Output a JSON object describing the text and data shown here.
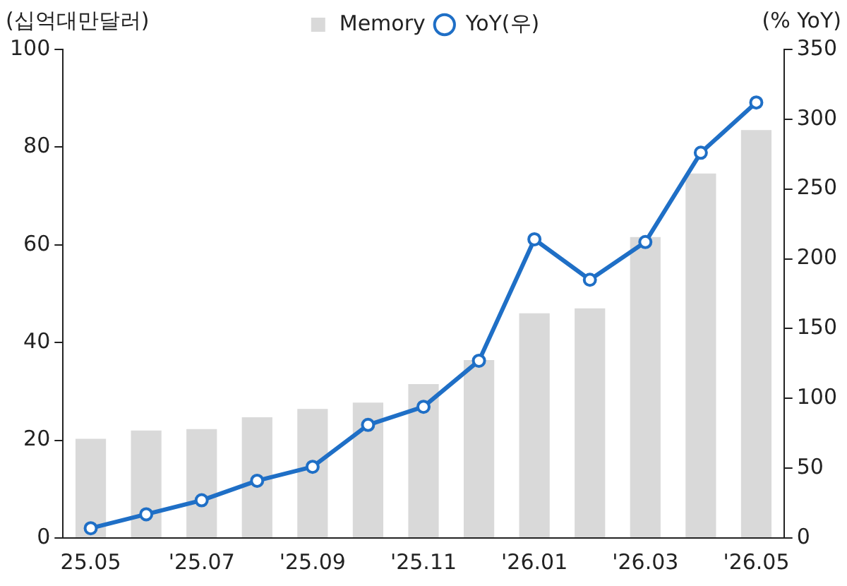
{
  "chart_data": {
    "type": "bar",
    "ylabel": "(십억대만달러)",
    "y2label": "(% YoY)",
    "categories": [
      "25.05",
      null,
      "'25.07",
      null,
      "'25.09",
      null,
      "'25.11",
      null,
      "'26.01",
      null,
      "'26.03",
      null,
      "'26.05"
    ],
    "series": [
      {
        "name": "Memory",
        "color": "#d9d9d9",
        "values": [
          20.3,
          22.0,
          22.3,
          24.7,
          26.4,
          27.7,
          31.5,
          36.4,
          46.0,
          47.0,
          61.6,
          74.6,
          83.5
        ]
      },
      {
        "name": "YoY(우)",
        "type": "line",
        "axis": "y2",
        "color": "#1f6fc6",
        "values": [
          7,
          17,
          27,
          41,
          51,
          81,
          94,
          127,
          214,
          185,
          212,
          276,
          312
        ]
      }
    ],
    "ylim": [
      0,
      100
    ],
    "yticks": [
      0,
      20,
      40,
      60,
      80,
      100
    ],
    "y2lim": [
      0,
      350
    ],
    "y2ticks": [
      0,
      50,
      100,
      150,
      200,
      250,
      300,
      350
    ],
    "grid": false,
    "legend": "top",
    "marker": "circle",
    "line_style": "solid"
  }
}
